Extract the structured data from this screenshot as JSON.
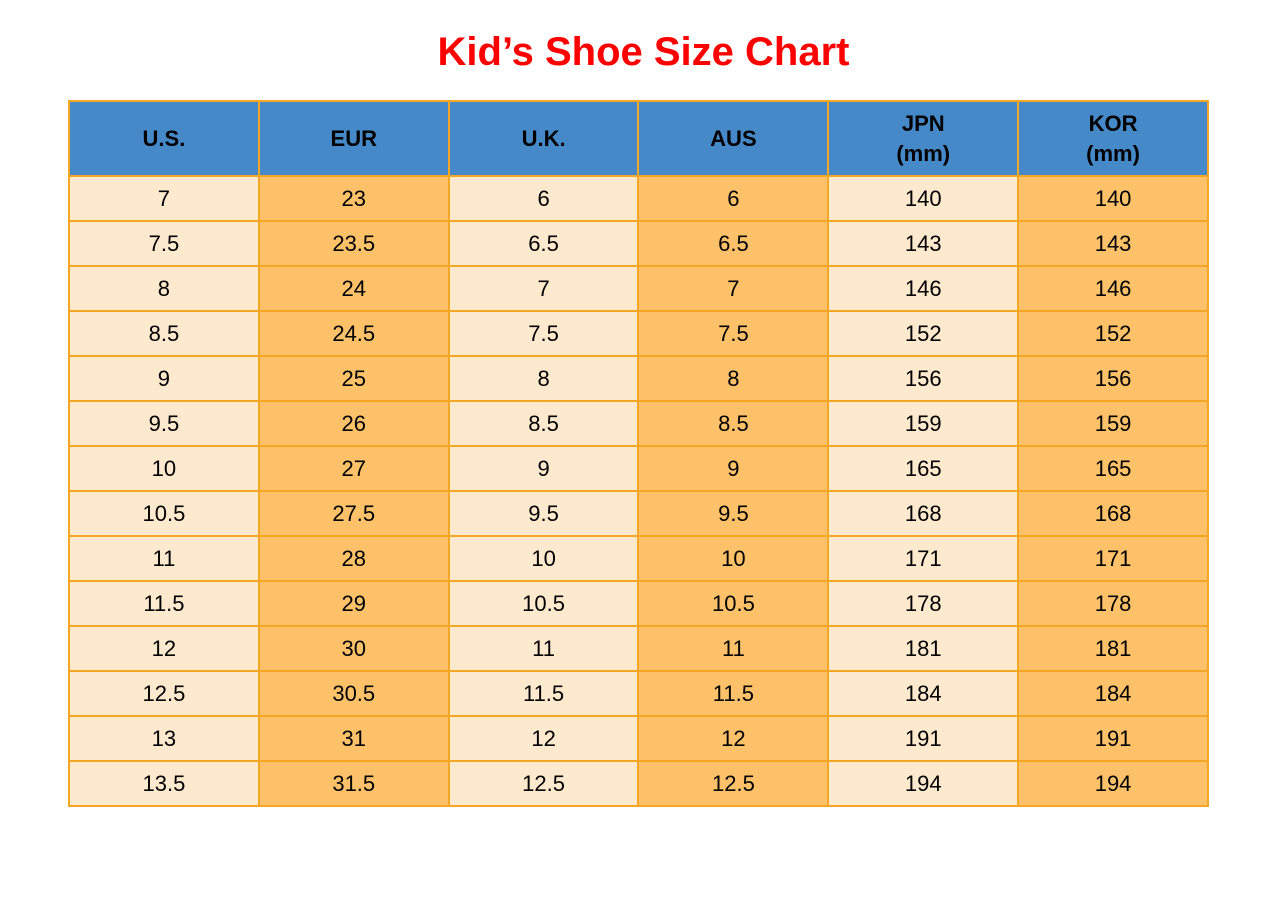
{
  "page_title": "Kid’s Shoe Size Chart",
  "colors": {
    "title": "#FF0000",
    "header_bg": "#4589C8",
    "header_text": "#000000",
    "cell_light": "#FDE9CD",
    "cell_orange": "#FCC169",
    "border": "#F5A623",
    "cell_text": "#000000",
    "page_bg": "#FFFFFF"
  },
  "chart_data": {
    "type": "table",
    "title": "Kid’s Shoe Size Chart",
    "columns": [
      "U.S.",
      "EUR",
      "U.K.",
      "AUS",
      "JPN\n(mm)",
      "KOR\n(mm)"
    ],
    "column_styles": [
      "light",
      "orange",
      "light",
      "orange",
      "light",
      "orange"
    ],
    "rows": [
      [
        "7",
        "23",
        "6",
        "6",
        "140",
        "140"
      ],
      [
        "7.5",
        "23.5",
        "6.5",
        "6.5",
        "143",
        "143"
      ],
      [
        "8",
        "24",
        "7",
        "7",
        "146",
        "146"
      ],
      [
        "8.5",
        "24.5",
        "7.5",
        "7.5",
        "152",
        "152"
      ],
      [
        "9",
        "25",
        "8",
        "8",
        "156",
        "156"
      ],
      [
        "9.5",
        "26",
        "8.5",
        "8.5",
        "159",
        "159"
      ],
      [
        "10",
        "27",
        "9",
        "9",
        "165",
        "165"
      ],
      [
        "10.5",
        "27.5",
        "9.5",
        "9.5",
        "168",
        "168"
      ],
      [
        "11",
        "28",
        "10",
        "10",
        "171",
        "171"
      ],
      [
        "11.5",
        "29",
        "10.5",
        "10.5",
        "178",
        "178"
      ],
      [
        "12",
        "30",
        "11",
        "11",
        "181",
        "181"
      ],
      [
        "12.5",
        "30.5",
        "11.5",
        "11.5",
        "184",
        "184"
      ],
      [
        "13",
        "31",
        "12",
        "12",
        "191",
        "191"
      ],
      [
        "13.5",
        "31.5",
        "12.5",
        "12.5",
        "194",
        "194"
      ]
    ]
  }
}
